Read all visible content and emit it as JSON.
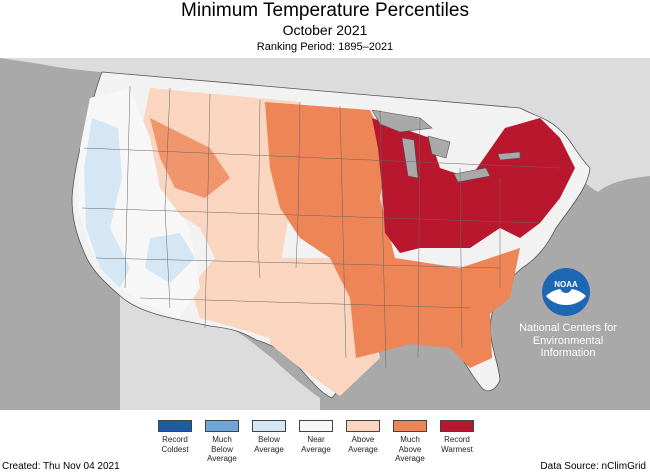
{
  "header": {
    "title": "Minimum Temperature Percentiles",
    "subtitle": "October 2021",
    "period": "Ranking Period: 1895–2021"
  },
  "agency": {
    "logo_text": "NOAA",
    "lines": [
      "National Centers for",
      "Environmental",
      "Information"
    ]
  },
  "legend": [
    {
      "label": "Record Coldest",
      "color": "#1f5aa6"
    },
    {
      "label": "Much Below Average",
      "color": "#6fa6d6"
    },
    {
      "label": "Below Average",
      "color": "#d5e6f4"
    },
    {
      "label": "Near Average",
      "color": "#f7f7f7"
    },
    {
      "label": "Above Average",
      "color": "#fad6c0"
    },
    {
      "label": "Much Above Average",
      "color": "#ee8556"
    },
    {
      "label": "Record Warmest",
      "color": "#b8172e"
    }
  ],
  "footer": {
    "created": "Created: Thu Nov 04 2021",
    "source": "Data Source: nClimGrid"
  },
  "colors": {
    "ocean": "#a9a9a9",
    "land_outside": "#dcdcdc",
    "lakes": "#a9a9a9"
  }
}
